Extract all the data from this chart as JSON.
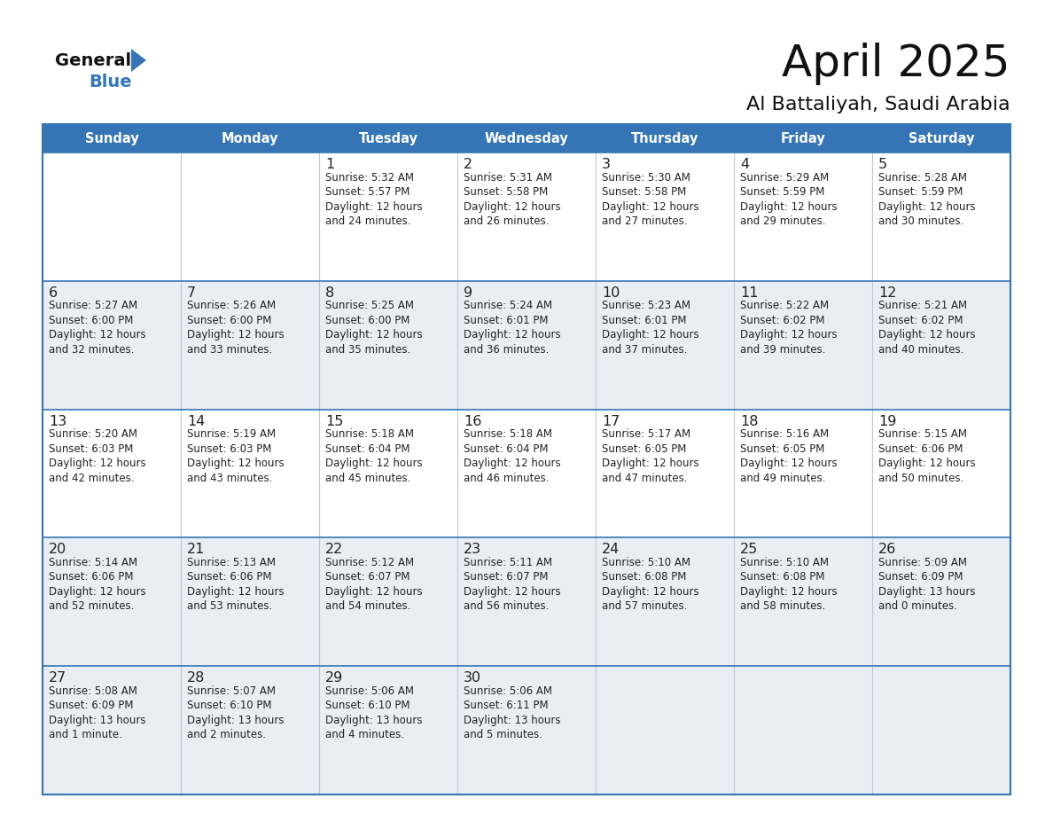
{
  "title": "April 2025",
  "subtitle": "Al Battaliyah, Saudi Arabia",
  "header_bg": "#3575b5",
  "header_text_color": "#ffffff",
  "day_names": [
    "Sunday",
    "Monday",
    "Tuesday",
    "Wednesday",
    "Thursday",
    "Friday",
    "Saturday"
  ],
  "bg_color": "#ffffff",
  "row_colors": [
    "#ffffff",
    "#e8eef4",
    "#ffffff",
    "#e8eef4",
    "#e8eef4"
  ],
  "border_color": "#3575b5",
  "sep_line_color": "#3575b5",
  "vcol_line_color": "#c0c8d0",
  "day_num_color": "#222222",
  "info_text_color": "#222222",
  "days": [
    {
      "day": 1,
      "col": 2,
      "row": 0,
      "sunrise": "5:32 AM",
      "sunset": "5:57 PM",
      "daylight": "12 hours and 24 minutes."
    },
    {
      "day": 2,
      "col": 3,
      "row": 0,
      "sunrise": "5:31 AM",
      "sunset": "5:58 PM",
      "daylight": "12 hours and 26 minutes."
    },
    {
      "day": 3,
      "col": 4,
      "row": 0,
      "sunrise": "5:30 AM",
      "sunset": "5:58 PM",
      "daylight": "12 hours and 27 minutes."
    },
    {
      "day": 4,
      "col": 5,
      "row": 0,
      "sunrise": "5:29 AM",
      "sunset": "5:59 PM",
      "daylight": "12 hours and 29 minutes."
    },
    {
      "day": 5,
      "col": 6,
      "row": 0,
      "sunrise": "5:28 AM",
      "sunset": "5:59 PM",
      "daylight": "12 hours and 30 minutes."
    },
    {
      "day": 6,
      "col": 0,
      "row": 1,
      "sunrise": "5:27 AM",
      "sunset": "6:00 PM",
      "daylight": "12 hours and 32 minutes."
    },
    {
      "day": 7,
      "col": 1,
      "row": 1,
      "sunrise": "5:26 AM",
      "sunset": "6:00 PM",
      "daylight": "12 hours and 33 minutes."
    },
    {
      "day": 8,
      "col": 2,
      "row": 1,
      "sunrise": "5:25 AM",
      "sunset": "6:00 PM",
      "daylight": "12 hours and 35 minutes."
    },
    {
      "day": 9,
      "col": 3,
      "row": 1,
      "sunrise": "5:24 AM",
      "sunset": "6:01 PM",
      "daylight": "12 hours and 36 minutes."
    },
    {
      "day": 10,
      "col": 4,
      "row": 1,
      "sunrise": "5:23 AM",
      "sunset": "6:01 PM",
      "daylight": "12 hours and 37 minutes."
    },
    {
      "day": 11,
      "col": 5,
      "row": 1,
      "sunrise": "5:22 AM",
      "sunset": "6:02 PM",
      "daylight": "12 hours and 39 minutes."
    },
    {
      "day": 12,
      "col": 6,
      "row": 1,
      "sunrise": "5:21 AM",
      "sunset": "6:02 PM",
      "daylight": "12 hours and 40 minutes."
    },
    {
      "day": 13,
      "col": 0,
      "row": 2,
      "sunrise": "5:20 AM",
      "sunset": "6:03 PM",
      "daylight": "12 hours and 42 minutes."
    },
    {
      "day": 14,
      "col": 1,
      "row": 2,
      "sunrise": "5:19 AM",
      "sunset": "6:03 PM",
      "daylight": "12 hours and 43 minutes."
    },
    {
      "day": 15,
      "col": 2,
      "row": 2,
      "sunrise": "5:18 AM",
      "sunset": "6:04 PM",
      "daylight": "12 hours and 45 minutes."
    },
    {
      "day": 16,
      "col": 3,
      "row": 2,
      "sunrise": "5:18 AM",
      "sunset": "6:04 PM",
      "daylight": "12 hours and 46 minutes."
    },
    {
      "day": 17,
      "col": 4,
      "row": 2,
      "sunrise": "5:17 AM",
      "sunset": "6:05 PM",
      "daylight": "12 hours and 47 minutes."
    },
    {
      "day": 18,
      "col": 5,
      "row": 2,
      "sunrise": "5:16 AM",
      "sunset": "6:05 PM",
      "daylight": "12 hours and 49 minutes."
    },
    {
      "day": 19,
      "col": 6,
      "row": 2,
      "sunrise": "5:15 AM",
      "sunset": "6:06 PM",
      "daylight": "12 hours and 50 minutes."
    },
    {
      "day": 20,
      "col": 0,
      "row": 3,
      "sunrise": "5:14 AM",
      "sunset": "6:06 PM",
      "daylight": "12 hours and 52 minutes."
    },
    {
      "day": 21,
      "col": 1,
      "row": 3,
      "sunrise": "5:13 AM",
      "sunset": "6:06 PM",
      "daylight": "12 hours and 53 minutes."
    },
    {
      "day": 22,
      "col": 2,
      "row": 3,
      "sunrise": "5:12 AM",
      "sunset": "6:07 PM",
      "daylight": "12 hours and 54 minutes."
    },
    {
      "day": 23,
      "col": 3,
      "row": 3,
      "sunrise": "5:11 AM",
      "sunset": "6:07 PM",
      "daylight": "12 hours and 56 minutes."
    },
    {
      "day": 24,
      "col": 4,
      "row": 3,
      "sunrise": "5:10 AM",
      "sunset": "6:08 PM",
      "daylight": "12 hours and 57 minutes."
    },
    {
      "day": 25,
      "col": 5,
      "row": 3,
      "sunrise": "5:10 AM",
      "sunset": "6:08 PM",
      "daylight": "12 hours and 58 minutes."
    },
    {
      "day": 26,
      "col": 6,
      "row": 3,
      "sunrise": "5:09 AM",
      "sunset": "6:09 PM",
      "daylight": "13 hours and 0 minutes."
    },
    {
      "day": 27,
      "col": 0,
      "row": 4,
      "sunrise": "5:08 AM",
      "sunset": "6:09 PM",
      "daylight": "13 hours and 1 minute."
    },
    {
      "day": 28,
      "col": 1,
      "row": 4,
      "sunrise": "5:07 AM",
      "sunset": "6:10 PM",
      "daylight": "13 hours and 2 minutes."
    },
    {
      "day": 29,
      "col": 2,
      "row": 4,
      "sunrise": "5:06 AM",
      "sunset": "6:10 PM",
      "daylight": "13 hours and 4 minutes."
    },
    {
      "day": 30,
      "col": 3,
      "row": 4,
      "sunrise": "5:06 AM",
      "sunset": "6:11 PM",
      "daylight": "13 hours and 5 minutes."
    }
  ]
}
